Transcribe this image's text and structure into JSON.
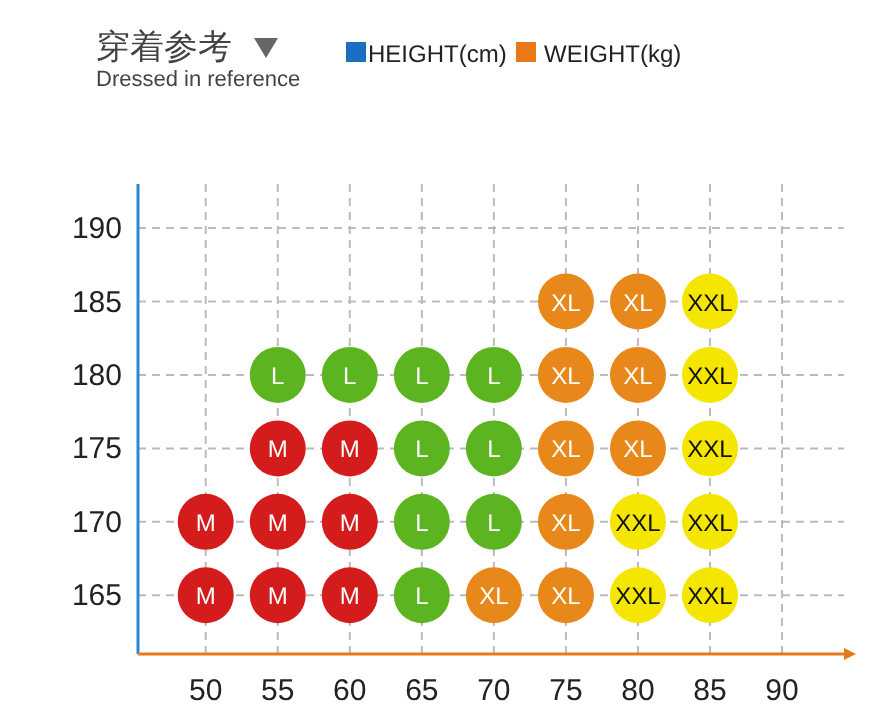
{
  "chart_data": {
    "type": "scatter",
    "title": "穿着参考",
    "subtitle": "Dressed in reference",
    "xlabel": "WEIGHT(kg)",
    "ylabel": "HEIGHT(cm)",
    "xlim": [
      45.3,
      94.3
    ],
    "ylim": [
      161,
      193
    ],
    "xticks": [
      50,
      55,
      60,
      65,
      70,
      75,
      80,
      85,
      90
    ],
    "yticks": [
      165,
      170,
      175,
      180,
      185,
      190
    ],
    "grid": true,
    "marker": "circle",
    "series": [
      {
        "name": "M",
        "color": "#d41c1c",
        "x": [
          50,
          55,
          60,
          50,
          55,
          60,
          55,
          60
        ],
        "values": [
          165,
          165,
          165,
          170,
          170,
          170,
          175,
          175
        ]
      },
      {
        "name": "L",
        "color": "#5cb520",
        "x": [
          65,
          65,
          70,
          65,
          70,
          55,
          60,
          65,
          70
        ],
        "values": [
          165,
          170,
          170,
          175,
          175,
          180,
          180,
          180,
          180
        ]
      },
      {
        "name": "XL",
        "color": "#e8881a",
        "x": [
          70,
          75,
          75,
          75,
          80,
          75,
          80,
          75,
          80
        ],
        "values": [
          165,
          165,
          170,
          175,
          175,
          180,
          180,
          185,
          185
        ]
      },
      {
        "name": "XXL",
        "color": "#f5e600",
        "x": [
          80,
          85,
          80,
          85,
          85,
          85,
          85
        ],
        "values": [
          165,
          165,
          170,
          170,
          175,
          180,
          185
        ]
      }
    ]
  }
}
